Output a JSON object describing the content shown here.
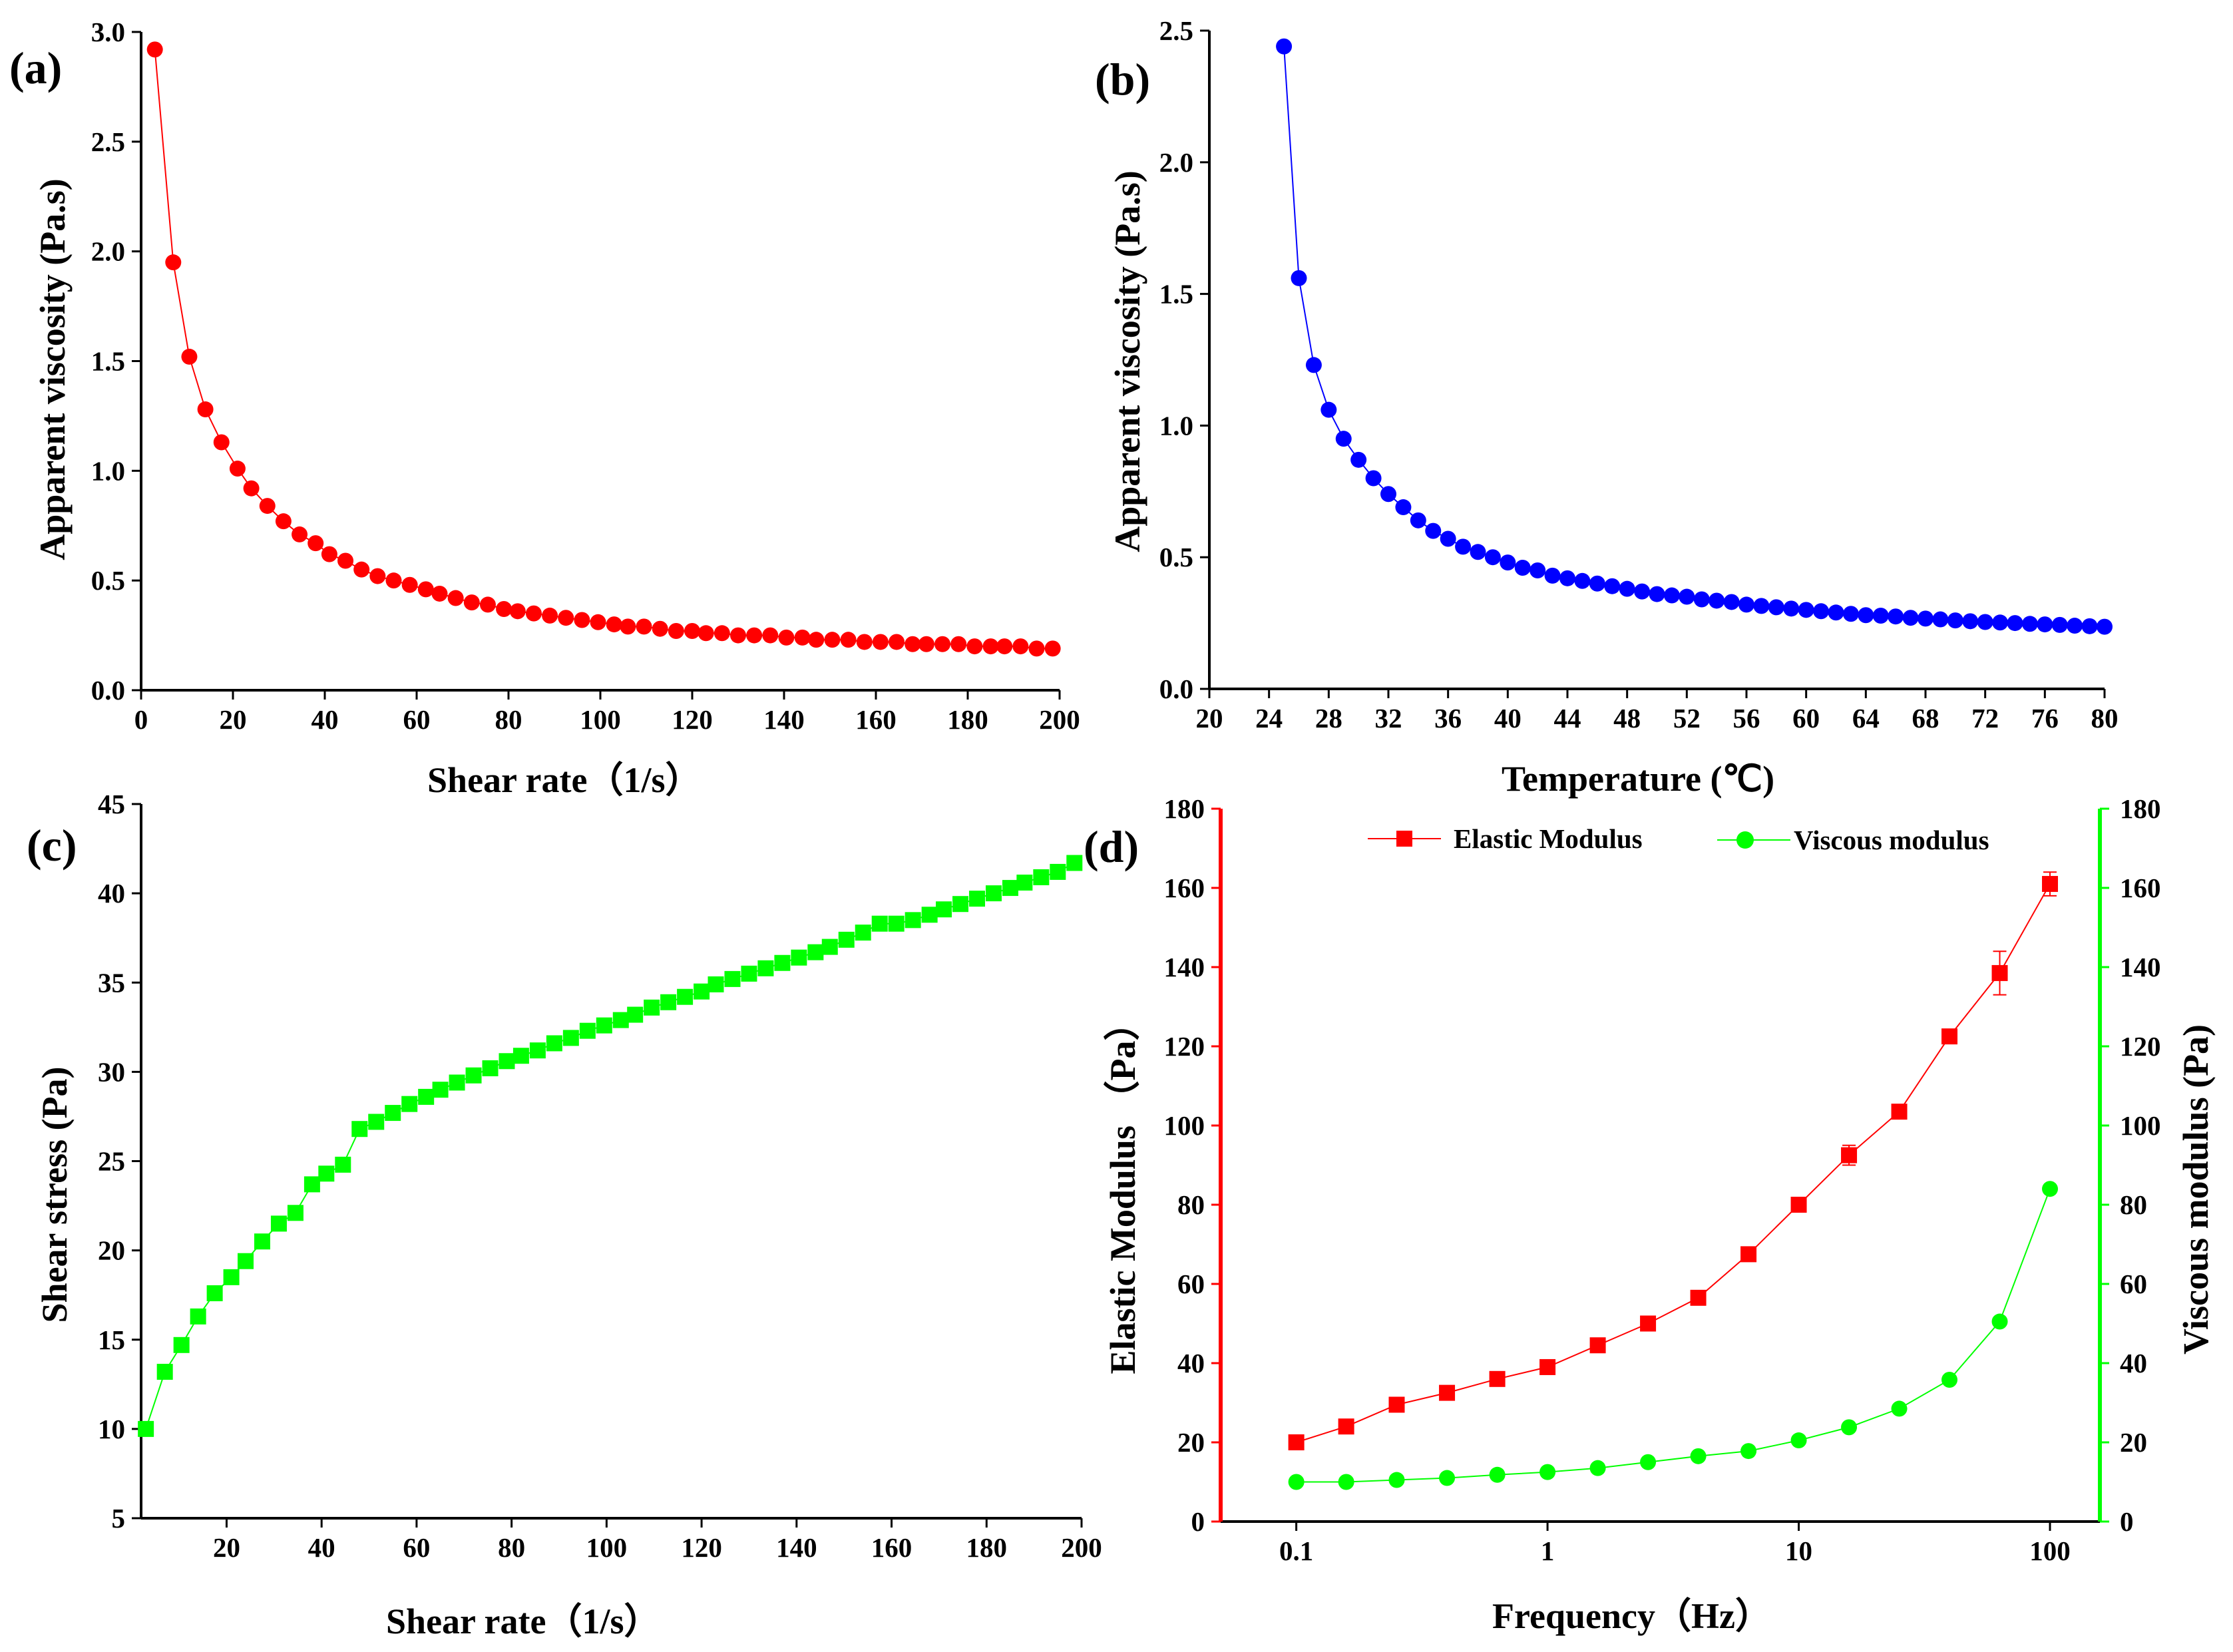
{
  "figure": {
    "panels": [
      {
        "label": "(a)",
        "xlabel": "Shear rate（1/s）",
        "ylabel": "Apparent viscosity (Pa.s)"
      },
      {
        "label": "(b)",
        "xlabel": "Temperature (℃)",
        "ylabel": "Apparent viscosity (Pa.s)"
      },
      {
        "label": "(c)",
        "xlabel": "Shear rate（1/s）",
        "ylabel": "Shear stress (Pa)"
      },
      {
        "label": "(d)",
        "xlabel": "Frequency（Hz）",
        "ylabel": "Elastic Modulus （Pa）",
        "ylabel_right": "Viscous modulus (Pa)",
        "legend": [
          "Elastic Modulus",
          "Viscous modulus"
        ]
      }
    ]
  },
  "chart_data": [
    {
      "type": "line",
      "panel": "(a)",
      "xlabel": "Shear rate（1/s）",
      "ylabel": "Apparent viscosity (Pa.s)",
      "xlim": [
        0,
        200
      ],
      "ylim": [
        0,
        3.0
      ],
      "xticks": [
        0,
        20,
        40,
        60,
        80,
        100,
        120,
        140,
        160,
        180,
        200
      ],
      "yticks": [
        0.0,
        0.5,
        1.0,
        1.5,
        2.0,
        2.5,
        3.0
      ],
      "ytick_labels": [
        "0.0",
        "0.5",
        "1.0",
        "1.5",
        "2.0",
        "2.5",
        "3.0"
      ],
      "color": "#ff0000",
      "marker": "circle",
      "series": [
        {
          "x": [
            3,
            7,
            10.5,
            14,
            17.5,
            21,
            24,
            27.5,
            31,
            34.5,
            38,
            41,
            44.5,
            48,
            51.5,
            55,
            58.5,
            62,
            65,
            68.5,
            72,
            75.5,
            79,
            82,
            85.5,
            89,
            92.5,
            96,
            99.5,
            103,
            106,
            109.5,
            113,
            116.5,
            120,
            123,
            126.5,
            130,
            133.5,
            137,
            140.5,
            144,
            147,
            150.5,
            154,
            157.5,
            161,
            164.5,
            168,
            171,
            174.5,
            178,
            181.5,
            185,
            188,
            191.5,
            195,
            198.5
          ],
          "y": [
            2.92,
            1.95,
            1.52,
            1.28,
            1.13,
            1.01,
            0.92,
            0.84,
            0.77,
            0.71,
            0.67,
            0.62,
            0.59,
            0.55,
            0.52,
            0.5,
            0.48,
            0.46,
            0.44,
            0.42,
            0.4,
            0.39,
            0.37,
            0.36,
            0.35,
            0.34,
            0.33,
            0.32,
            0.31,
            0.3,
            0.29,
            0.29,
            0.28,
            0.27,
            0.27,
            0.26,
            0.26,
            0.25,
            0.25,
            0.25,
            0.24,
            0.24,
            0.23,
            0.23,
            0.23,
            0.22,
            0.22,
            0.22,
            0.21,
            0.21,
            0.21,
            0.21,
            0.2,
            0.2,
            0.2,
            0.2,
            0.19,
            0.19
          ]
        }
      ]
    },
    {
      "type": "line",
      "panel": "(b)",
      "xlabel": "Temperature (℃)",
      "ylabel": "Apparent viscosity (Pa.s)",
      "xlim": [
        20,
        80
      ],
      "ylim": [
        0,
        2.5
      ],
      "xticks": [
        20,
        24,
        28,
        32,
        36,
        40,
        44,
        48,
        52,
        56,
        60,
        64,
        68,
        72,
        76,
        80
      ],
      "yticks": [
        0.0,
        0.5,
        1.0,
        1.5,
        2.0,
        2.5
      ],
      "ytick_labels": [
        "0.0",
        "0.5",
        "1.0",
        "1.5",
        "2.0",
        "2.5"
      ],
      "color": "#0000ff",
      "marker": "circle",
      "series": [
        {
          "x": [
            25,
            26,
            27,
            28,
            29,
            30,
            31,
            32,
            33,
            34,
            35,
            36,
            37,
            38,
            39,
            40,
            41,
            42,
            43,
            44,
            45,
            46,
            47,
            48,
            49,
            50,
            51,
            52,
            53,
            54,
            55,
            56,
            57,
            58,
            59,
            60,
            61,
            62,
            63,
            64,
            65,
            66,
            67,
            68,
            69,
            70,
            71,
            72,
            73,
            74,
            75,
            76,
            77,
            78,
            79,
            80
          ],
          "y": [
            2.44,
            1.56,
            1.23,
            1.06,
            0.95,
            0.87,
            0.8,
            0.74,
            0.69,
            0.64,
            0.6,
            0.57,
            0.54,
            0.52,
            0.5,
            0.48,
            0.46,
            0.45,
            0.43,
            0.42,
            0.41,
            0.4,
            0.39,
            0.38,
            0.37,
            0.36,
            0.355,
            0.35,
            0.34,
            0.335,
            0.33,
            0.32,
            0.315,
            0.31,
            0.305,
            0.3,
            0.295,
            0.29,
            0.285,
            0.28,
            0.278,
            0.275,
            0.27,
            0.267,
            0.264,
            0.26,
            0.257,
            0.254,
            0.252,
            0.25,
            0.247,
            0.245,
            0.243,
            0.24,
            0.238,
            0.236
          ]
        }
      ]
    },
    {
      "type": "line",
      "panel": "(c)",
      "xlabel": "Shear rate（1/s）",
      "ylabel": "Shear stress (Pa)",
      "xlim": [
        2,
        200
      ],
      "ylim": [
        5,
        45
      ],
      "xticks": [
        20,
        40,
        60,
        80,
        100,
        120,
        140,
        160,
        180,
        200
      ],
      "yticks": [
        5,
        10,
        15,
        20,
        25,
        30,
        35,
        40,
        45
      ],
      "color": "#00ff00",
      "marker": "square",
      "series": [
        {
          "x": [
            3,
            7,
            10.5,
            14,
            17.5,
            21,
            24,
            27.5,
            31,
            34.5,
            38,
            41,
            44.5,
            48,
            51.5,
            55,
            58.5,
            62,
            65,
            68.5,
            72,
            75.5,
            79,
            82,
            85.5,
            89,
            92.5,
            96,
            99.5,
            103,
            106,
            109.5,
            113,
            116.5,
            120,
            123,
            126.5,
            130,
            133.5,
            137,
            140.5,
            144,
            147,
            150.5,
            154,
            157.5,
            161,
            164.5,
            168,
            171,
            174.5,
            178,
            181.5,
            185,
            188,
            191.5,
            195,
            198.5
          ],
          "y": [
            10.0,
            13.2,
            14.7,
            16.3,
            17.6,
            18.5,
            19.4,
            20.5,
            21.5,
            22.1,
            23.7,
            24.3,
            24.8,
            26.8,
            27.2,
            27.7,
            28.2,
            28.6,
            29.0,
            29.4,
            29.8,
            30.2,
            30.6,
            30.9,
            31.2,
            31.6,
            31.9,
            32.3,
            32.6,
            32.9,
            33.2,
            33.6,
            33.9,
            34.2,
            34.5,
            34.9,
            35.2,
            35.5,
            35.8,
            36.1,
            36.4,
            36.7,
            37.0,
            37.4,
            37.8,
            38.3,
            38.3,
            38.5,
            38.8,
            39.1,
            39.4,
            39.7,
            40.0,
            40.3,
            40.6,
            40.9,
            41.2,
            41.7
          ]
        }
      ]
    },
    {
      "type": "line",
      "panel": "(d)",
      "xlabel": "Frequency（Hz）",
      "ylabel": "Elastic Modulus （Pa）",
      "ylabel_right": "Viscous modulus (Pa)",
      "xscale": "log",
      "xlim": [
        0.05,
        158
      ],
      "ylim": [
        0,
        180
      ],
      "xticks": [
        0.1,
        1,
        10,
        100
      ],
      "xtick_labels": [
        "0.1",
        "1",
        "10",
        "100"
      ],
      "yticks": [
        0,
        20,
        40,
        60,
        80,
        100,
        120,
        140,
        160,
        180
      ],
      "legend_position": "top",
      "series": [
        {
          "name": "Elastic Modulus",
          "color": "#ff0000",
          "marker": "square",
          "axis": "left",
          "x": [
            0.1,
            0.158,
            0.251,
            0.398,
            0.631,
            1.0,
            1.585,
            2.512,
            3.981,
            6.31,
            10.0,
            15.85,
            25.12,
            39.81,
            63.1,
            100
          ],
          "y": [
            20.0,
            24.0,
            29.5,
            32.5,
            36.0,
            39.0,
            44.5,
            50.0,
            56.5,
            67.5,
            80.0,
            92.5,
            103.5,
            122.5,
            138.5,
            161.0
          ],
          "error": [
            0,
            0,
            0,
            0,
            0,
            0,
            0,
            0,
            0,
            0,
            0,
            2.5,
            0,
            0,
            5.5,
            3.0
          ]
        },
        {
          "name": "Viscous modulus",
          "color": "#00ff00",
          "marker": "circle",
          "axis": "right",
          "x": [
            0.1,
            0.158,
            0.251,
            0.398,
            0.631,
            1.0,
            1.585,
            2.512,
            3.981,
            6.31,
            10.0,
            15.85,
            25.12,
            39.81,
            63.1,
            100
          ],
          "y": [
            10.0,
            10.0,
            10.5,
            11.0,
            11.8,
            12.5,
            13.5,
            15.0,
            16.5,
            17.8,
            20.5,
            23.8,
            28.5,
            35.8,
            50.5,
            84.0
          ]
        }
      ]
    }
  ]
}
